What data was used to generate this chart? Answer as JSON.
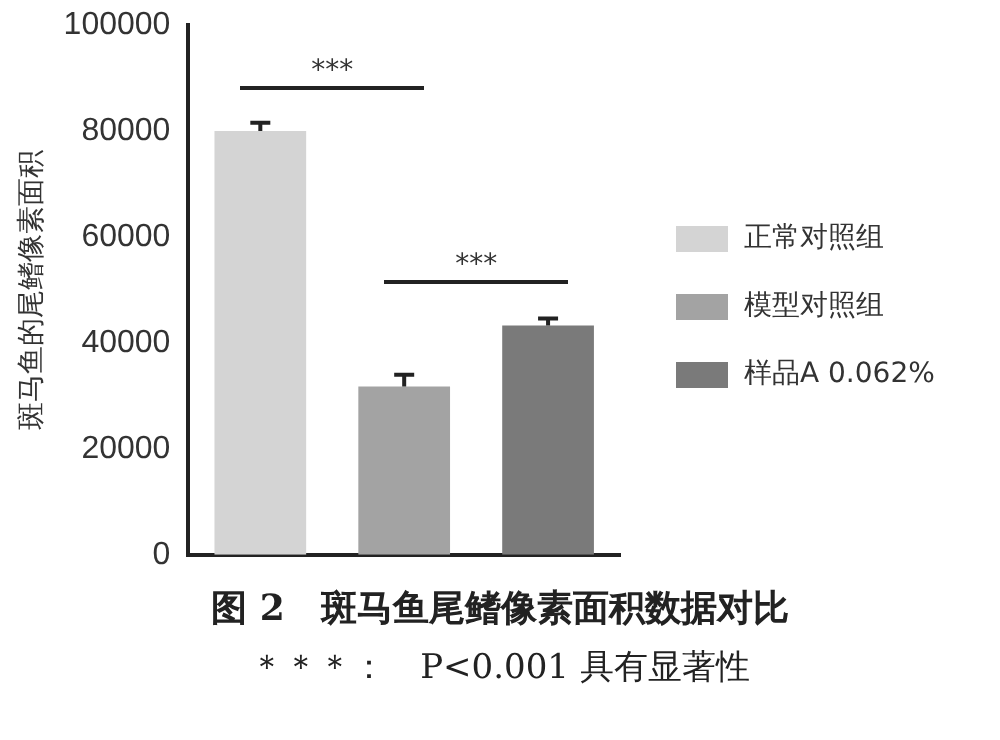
{
  "chart_data": {
    "type": "bar",
    "title": "图 2　斑马鱼尾鳍像素面积数据对比",
    "ylabel": "斑马鱼的尾鳍像素面积",
    "categories": [
      null,
      null,
      null
    ],
    "series": [
      {
        "name": "正常对照组",
        "color": "#d4d4d4",
        "values": [
          80000,
          null,
          null
        ],
        "errors": [
          [
            80000,
            81600
          ],
          null,
          null
        ]
      },
      {
        "name": "模型对照组",
        "color": "#a3a3a3",
        "values": [
          null,
          31800,
          null
        ],
        "errors": [
          null,
          [
            31800,
            34000
          ],
          null
        ]
      },
      {
        "name": "样品A 0.062%",
        "color": "#7a7a7a",
        "values": [
          null,
          null,
          43300
        ],
        "errors": [
          null,
          null,
          [
            43300,
            44600
          ]
        ]
      }
    ],
    "ylim": [
      0,
      100000
    ],
    "yticks": [
      0,
      20000,
      40000,
      60000,
      80000,
      100000
    ],
    "grid": false,
    "legend": "right",
    "stacked": true,
    "annotations": [
      "***",
      "***",
      "＊＊＊：　P<0.001 具有显著性"
    ]
  }
}
